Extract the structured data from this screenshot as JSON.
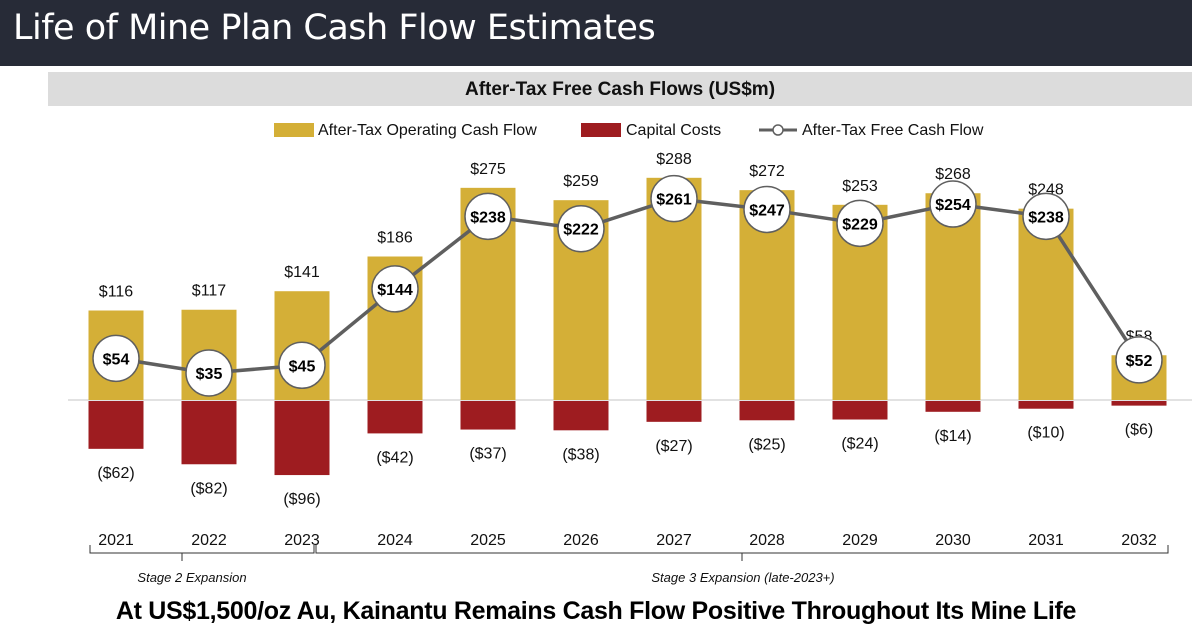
{
  "page": {
    "title": "Life of Mine Plan Cash Flow Estimates",
    "footer": "At US$1,500/oz Au, Kainantu Remains Cash Flow Positive Throughout Its Mine Life"
  },
  "colors": {
    "title_bar": "#272b37",
    "operating": "#d4af37",
    "capital": "#9e1c20",
    "free_line": "#5f5f5f",
    "header_band": "#dcdcdc"
  },
  "chart_data": {
    "type": "bar",
    "title": "After-Tax Free Cash Flows (US$m)",
    "xlabel": "",
    "ylabel": "",
    "ylim": [
      -100,
      300
    ],
    "grid": false,
    "legend_position": "top-center",
    "categories": [
      "2021",
      "2022",
      "2023",
      "2024",
      "2025",
      "2026",
      "2027",
      "2028",
      "2029",
      "2030",
      "2031",
      "2032"
    ],
    "series": [
      {
        "name": "After-Tax Operating Cash Flow",
        "type": "bar",
        "values": [
          116,
          117,
          141,
          186,
          275,
          259,
          288,
          272,
          253,
          268,
          248,
          58
        ],
        "labels": [
          "$116",
          "$117",
          "$141",
          "$186",
          "$275",
          "$259",
          "$288",
          "$272",
          "$253",
          "$268",
          "$248",
          "$58"
        ]
      },
      {
        "name": "Capital Costs",
        "type": "bar",
        "values": [
          -62,
          -82,
          -96,
          -42,
          -37,
          -38,
          -27,
          -25,
          -24,
          -14,
          -10,
          -6
        ],
        "labels": [
          "($62)",
          "($82)",
          "($96)",
          "($42)",
          "($37)",
          "($38)",
          "($27)",
          "($25)",
          "($24)",
          "($14)",
          "($10)",
          "($6)"
        ]
      },
      {
        "name": "After-Tax Free Cash Flow",
        "type": "line",
        "values": [
          54,
          35,
          45,
          144,
          238,
          222,
          261,
          247,
          229,
          254,
          238,
          52
        ],
        "labels": [
          "$54",
          "$35",
          "$45",
          "$144",
          "$238",
          "$222",
          "$261",
          "$247",
          "$229",
          "$254",
          "$238",
          "$52"
        ]
      }
    ],
    "annotations": [
      {
        "text": "Stage 2 Expansion",
        "span": [
          "2021",
          "2023"
        ]
      },
      {
        "text": "Stage 3 Expansion (late-2023+)",
        "span": [
          "2023",
          "2032"
        ]
      }
    ]
  }
}
